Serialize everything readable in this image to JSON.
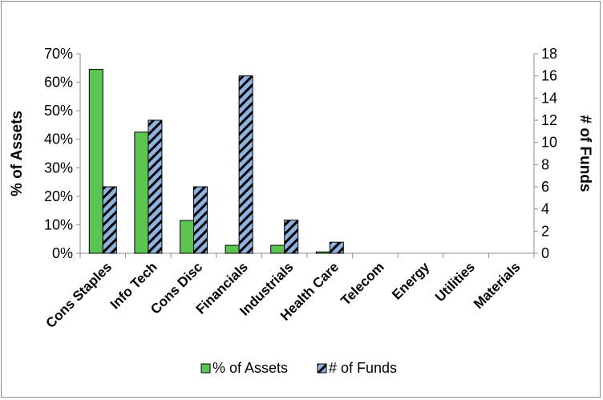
{
  "chart_data": {
    "type": "bar",
    "categories": [
      "Cons Staples",
      "Info Tech",
      "Cons Disc",
      "Financials",
      "Industrials",
      "Health Care",
      "Telecom",
      "Energy",
      "Utilities",
      "Materials"
    ],
    "series": [
      {
        "name": "% of Assets",
        "axis": "left",
        "values": [
          64.5,
          42.5,
          11.5,
          2.8,
          2.8,
          0.5,
          0,
          0,
          0,
          0
        ],
        "color": "#5cc450"
      },
      {
        "name": "# of Funds",
        "axis": "right",
        "values": [
          6,
          12,
          6,
          16,
          3,
          1,
          0,
          0,
          0,
          0
        ],
        "color": "#8fb3e0",
        "pattern": "diagonal-stripes-black"
      }
    ],
    "ylabel": "% of Assets",
    "y2label": "# of Funds",
    "ylim": [
      0,
      70
    ],
    "y_ticks": [
      "0%",
      "10%",
      "20%",
      "30%",
      "40%",
      "50%",
      "60%",
      "70%"
    ],
    "y2lim": [
      0,
      18
    ],
    "y2_ticks": [
      "0",
      "2",
      "4",
      "6",
      "8",
      "10",
      "12",
      "14",
      "16",
      "18"
    ],
    "legend_position": "bottom",
    "grid": false
  }
}
